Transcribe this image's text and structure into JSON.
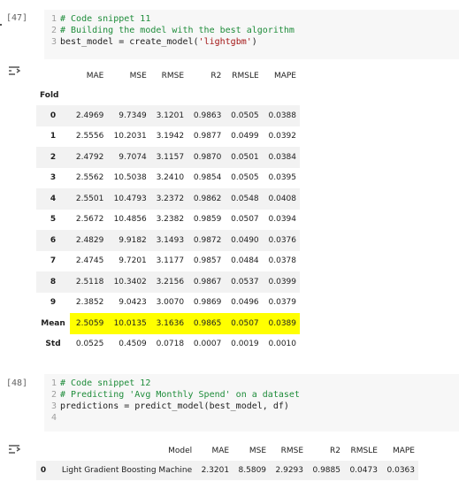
{
  "cells": [
    {
      "label": "[47]",
      "code": [
        {
          "num": "1",
          "kind": "comment",
          "text": "# Code snippet 11"
        },
        {
          "num": "2",
          "kind": "comment",
          "text": "# Building the model with the best algorithm"
        },
        {
          "num": "3",
          "kind": "call",
          "prefix": "best_model = create_model(",
          "string": "'lightgbm'",
          "suffix": ")"
        }
      ]
    },
    {
      "label": "[48]",
      "code": [
        {
          "num": "1",
          "kind": "comment",
          "text": "# Code snippet 12"
        },
        {
          "num": "2",
          "kind": "comment",
          "text": "# Predicting 'Avg Monthly Spend' on a dataset"
        },
        {
          "num": "3",
          "kind": "plain",
          "text": "predictions = predict_model(best_model, df)"
        },
        {
          "num": "4",
          "kind": "plain",
          "text": ""
        }
      ]
    }
  ],
  "output_icon": "output-toggle-icon",
  "metrics_table": {
    "index_name": "Fold",
    "columns": [
      "MAE",
      "MSE",
      "RMSE",
      "R2",
      "RMSLE",
      "MAPE"
    ],
    "highlight_color": "#ffff00",
    "rows": [
      {
        "index": "0",
        "values": [
          "2.4969",
          "9.7349",
          "3.1201",
          "0.9863",
          "0.0505",
          "0.0388"
        ]
      },
      {
        "index": "1",
        "values": [
          "2.5556",
          "10.2031",
          "3.1942",
          "0.9877",
          "0.0499",
          "0.0392"
        ]
      },
      {
        "index": "2",
        "values": [
          "2.4792",
          "9.7074",
          "3.1157",
          "0.9870",
          "0.0501",
          "0.0384"
        ]
      },
      {
        "index": "3",
        "values": [
          "2.5562",
          "10.5038",
          "3.2410",
          "0.9854",
          "0.0505",
          "0.0395"
        ]
      },
      {
        "index": "4",
        "values": [
          "2.5501",
          "10.4793",
          "3.2372",
          "0.9862",
          "0.0548",
          "0.0408"
        ]
      },
      {
        "index": "5",
        "values": [
          "2.5672",
          "10.4856",
          "3.2382",
          "0.9859",
          "0.0507",
          "0.0394"
        ]
      },
      {
        "index": "6",
        "values": [
          "2.4829",
          "9.9182",
          "3.1493",
          "0.9872",
          "0.0490",
          "0.0376"
        ]
      },
      {
        "index": "7",
        "values": [
          "2.4745",
          "9.7201",
          "3.1177",
          "0.9857",
          "0.0484",
          "0.0378"
        ]
      },
      {
        "index": "8",
        "values": [
          "2.5118",
          "10.3402",
          "3.2156",
          "0.9867",
          "0.0537",
          "0.0399"
        ]
      },
      {
        "index": "9",
        "values": [
          "2.3852",
          "9.0423",
          "3.0070",
          "0.9869",
          "0.0496",
          "0.0379"
        ]
      },
      {
        "index": "Mean",
        "values": [
          "2.5059",
          "10.0135",
          "3.1636",
          "0.9865",
          "0.0507",
          "0.0389"
        ]
      },
      {
        "index": "Std",
        "values": [
          "0.0525",
          "0.4509",
          "0.0718",
          "0.0007",
          "0.0019",
          "0.0010"
        ]
      }
    ]
  },
  "prediction_table": {
    "columns": [
      "Model",
      "MAE",
      "MSE",
      "RMSE",
      "R2",
      "RMSLE",
      "MAPE"
    ],
    "rows": [
      {
        "index": "0",
        "values": [
          "Light Gradient Boosting Machine",
          "2.3201",
          "8.5809",
          "2.9293",
          "0.9885",
          "0.0473",
          "0.0363"
        ]
      }
    ]
  }
}
